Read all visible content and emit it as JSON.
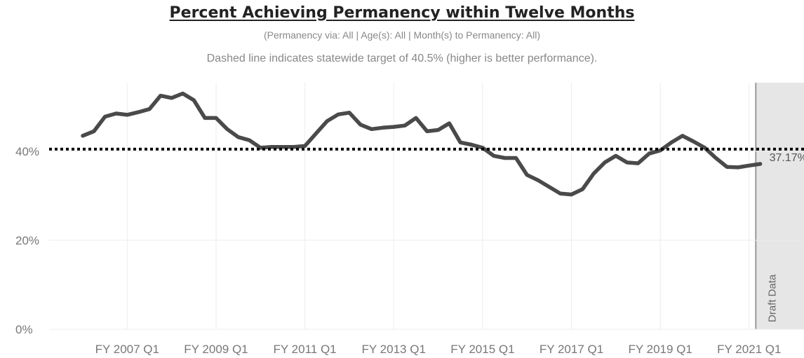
{
  "title": "Percent Achieving Permanency within Twelve Months",
  "subtitle": "(Permanency via: All | Age(s): All | Month(s) to Permanency: All)",
  "note": "Dashed line indicates statewide target of 40.5% (higher is better performance).",
  "draft_label": "Draft Data",
  "end_label": "37.17%",
  "colors": {
    "line": "#4a4a4a",
    "target": "#000000",
    "draft_bg": "#e6e6e6",
    "grid": "#ececec"
  },
  "chart_data": {
    "type": "line",
    "title": "Percent Achieving Permanency within Twelve Months",
    "ylabel": "",
    "xlabel": "",
    "ylim": [
      0,
      55
    ],
    "y_ticks": [
      {
        "value": 0,
        "label": "0%"
      },
      {
        "value": 20,
        "label": "20%"
      },
      {
        "value": 40,
        "label": "40%"
      }
    ],
    "x_ticks": [
      {
        "index": 4,
        "label": "FY 2007 Q1"
      },
      {
        "index": 12,
        "label": "FY 2009 Q1"
      },
      {
        "index": 20,
        "label": "FY 2011 Q1"
      },
      {
        "index": 28,
        "label": "FY 2013 Q1"
      },
      {
        "index": 36,
        "label": "FY 2015 Q1"
      },
      {
        "index": 44,
        "label": "FY 2017 Q1"
      },
      {
        "index": 52,
        "label": "FY 2019 Q1"
      },
      {
        "index": 60,
        "label": "FY 2021 Q1"
      }
    ],
    "target": 40.5,
    "draft_from_index": 60.6,
    "series": [
      {
        "values": [
          43.5,
          44.5,
          47.8,
          48.5,
          48.2,
          48.8,
          49.5,
          52.5,
          52.0,
          53.0,
          51.5,
          47.5,
          47.5,
          45.0,
          43.2,
          42.5,
          40.8,
          41.0,
          41.0,
          41.0,
          41.2,
          44.0,
          46.8,
          48.3,
          48.7,
          46.0,
          45.0,
          45.3,
          45.5,
          45.8,
          47.5,
          44.5,
          44.8,
          46.3,
          42.0,
          41.5,
          40.8,
          39.0,
          38.5,
          38.5,
          34.7,
          33.5,
          32.0,
          30.5,
          30.3,
          31.5,
          35.0,
          37.5,
          39.0,
          37.5,
          37.3,
          39.5,
          40.2,
          42.0,
          43.5,
          42.2,
          40.8,
          38.5,
          36.5,
          36.4,
          36.8,
          37.17
        ]
      }
    ]
  }
}
